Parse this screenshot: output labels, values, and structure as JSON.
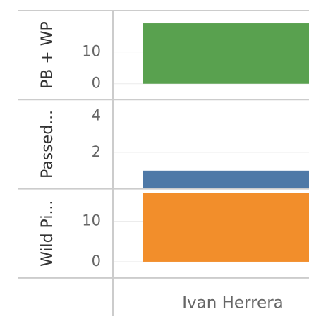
{
  "chart_data": {
    "type": "bar",
    "categories": [
      "Ivan Herrera"
    ],
    "panels": [
      {
        "ylabel": "PB + WP",
        "color": "#59a14f",
        "values": [
          19
        ],
        "ylim": [
          -5,
          23
        ],
        "yticks": [
          0,
          10
        ]
      },
      {
        "ylabel": "Passed...",
        "color": "#4e79a7",
        "values": [
          1
        ],
        "ylim": [
          0,
          4.9
        ],
        "yticks": [
          2,
          4
        ]
      },
      {
        "ylabel": "Wild Pi...",
        "color": "#f28e2b",
        "values": [
          17
        ],
        "ylim": [
          -4,
          18
        ],
        "yticks": [
          0,
          10
        ]
      }
    ]
  }
}
